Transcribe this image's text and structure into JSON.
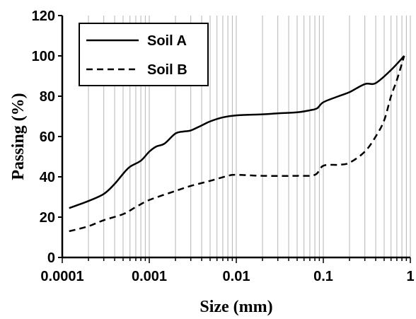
{
  "chart_data": {
    "type": "line",
    "xlabel": "Size (mm)",
    "ylabel": "Passing (%)",
    "x_scale": "log",
    "xlim": [
      0.0001,
      1
    ],
    "ylim": [
      0,
      120
    ],
    "x_ticks": [
      0.0001,
      0.001,
      0.01,
      0.1,
      1
    ],
    "x_tick_labels": [
      "0.0001",
      "0.001",
      "0.01",
      "0.1",
      "1"
    ],
    "y_ticks": [
      0,
      20,
      40,
      60,
      80,
      100,
      120
    ],
    "y_tick_labels": [
      "0",
      "20",
      "40",
      "60",
      "80",
      "100",
      "120"
    ],
    "grid": "vertical log minor and major",
    "legend_position": "top-left",
    "series": [
      {
        "name": "Soil A",
        "style": "solid",
        "x": [
          0.00012,
          0.0002,
          0.0003,
          0.0004,
          0.0005,
          0.0006,
          0.0008,
          0.001,
          0.0012,
          0.0015,
          0.002,
          0.0025,
          0.003,
          0.004,
          0.005,
          0.007,
          0.01,
          0.02,
          0.03,
          0.05,
          0.07,
          0.085,
          0.1,
          0.15,
          0.2,
          0.3,
          0.4,
          0.6,
          0.85
        ],
        "y": [
          24.5,
          28,
          31.5,
          36.5,
          41.5,
          45,
          48,
          52.5,
          55,
          56.5,
          61.5,
          62.5,
          63,
          65.5,
          67.5,
          69.5,
          70.5,
          71,
          71.5,
          72,
          73,
          74,
          77,
          80,
          82,
          86,
          86.5,
          93,
          100
        ]
      },
      {
        "name": "Soil B",
        "style": "dashed",
        "x": [
          0.00012,
          0.0002,
          0.0003,
          0.0005,
          0.0007,
          0.001,
          0.002,
          0.003,
          0.005,
          0.008,
          0.01,
          0.02,
          0.05,
          0.08,
          0.1,
          0.15,
          0.2,
          0.3,
          0.4,
          0.5,
          0.6,
          0.7,
          0.85
        ],
        "y": [
          13,
          15.5,
          18.5,
          21.5,
          25,
          28.5,
          33,
          35.5,
          38,
          40.5,
          41,
          40.5,
          40.5,
          41,
          45.5,
          46,
          47,
          52.5,
          60,
          68,
          80,
          88,
          100
        ]
      }
    ]
  }
}
